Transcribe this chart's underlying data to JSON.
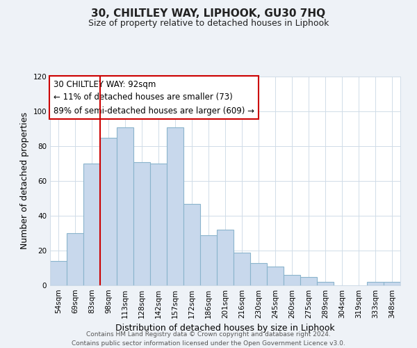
{
  "title": "30, CHILTLEY WAY, LIPHOOK, GU30 7HQ",
  "subtitle": "Size of property relative to detached houses in Liphook",
  "xlabel": "Distribution of detached houses by size in Liphook",
  "ylabel": "Number of detached properties",
  "bar_labels": [
    "54sqm",
    "69sqm",
    "83sqm",
    "98sqm",
    "113sqm",
    "128sqm",
    "142sqm",
    "157sqm",
    "172sqm",
    "186sqm",
    "201sqm",
    "216sqm",
    "230sqm",
    "245sqm",
    "260sqm",
    "275sqm",
    "289sqm",
    "304sqm",
    "319sqm",
    "333sqm",
    "348sqm"
  ],
  "bar_values": [
    14,
    30,
    70,
    85,
    91,
    71,
    70,
    91,
    47,
    29,
    32,
    19,
    13,
    11,
    6,
    5,
    2,
    0,
    0,
    2,
    2
  ],
  "bar_color": "#c8d8ec",
  "bar_edge_color": "#8ab4cc",
  "ylim": [
    0,
    120
  ],
  "yticks": [
    0,
    20,
    40,
    60,
    80,
    100,
    120
  ],
  "vline_color": "#cc0000",
  "annotation_title": "30 CHILTLEY WAY: 92sqm",
  "annotation_line1": "← 11% of detached houses are smaller (73)",
  "annotation_line2": "89% of semi-detached houses are larger (609) →",
  "annotation_box_color": "#ffffff",
  "annotation_box_edge": "#cc0000",
  "footer_line1": "Contains HM Land Registry data © Crown copyright and database right 2024.",
  "footer_line2": "Contains public sector information licensed under the Open Government Licence v3.0.",
  "background_color": "#eef2f7",
  "plot_background": "#ffffff",
  "grid_color": "#d0dce8"
}
